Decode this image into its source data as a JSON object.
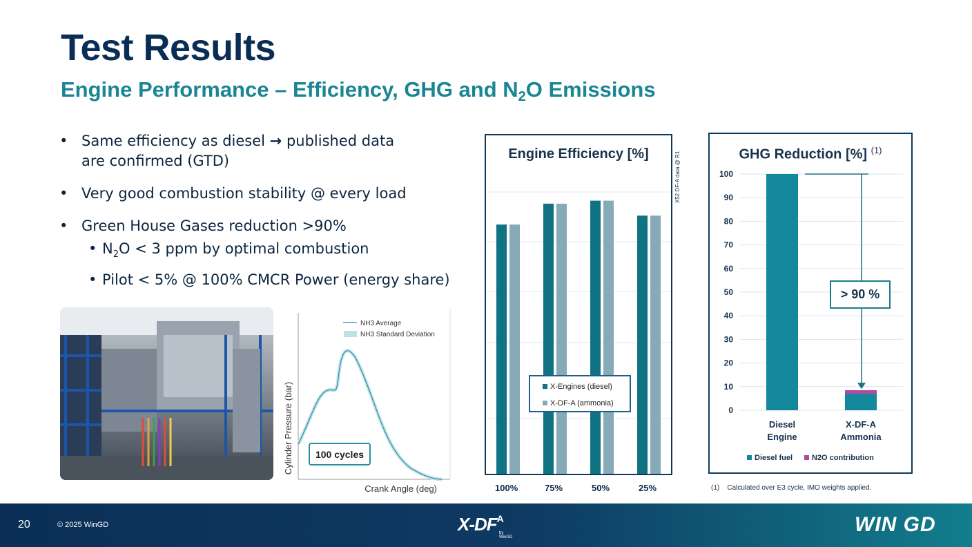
{
  "slide": {
    "title": "Test Results",
    "subtitle_pre": "Engine Performance – Efficiency, GHG and N",
    "subtitle_sub": "2",
    "subtitle_post": "O Emissions"
  },
  "bullets": {
    "b1_pre": "Same efficiency as diesel ",
    "b1_arrow": "→",
    "b1_line1_post": " published data",
    "b1_line2": "are confirmed (GTD)",
    "b2": "Very good combustion stability @ every load",
    "b3": "Green House Gases reduction >90%",
    "sub1_pre": "N",
    "sub1_sub": "2",
    "sub1_post": "O < 3 ppm by optimal combustion",
    "sub2": "Pilot < 5% @ 100% CMCR Power (energy share)"
  },
  "pressure_plot": {
    "legend_avg": "NH3 Average",
    "legend_std": "NH3 Standard Deviation",
    "ylabel": "Cylinder Pressure (bar)",
    "xlabel": "Crank Angle (deg)",
    "box_label": "100 cycles"
  },
  "chart_data": [
    {
      "type": "bar",
      "title": "Engine Efficiency [%]",
      "categories": [
        "100%",
        "75%",
        "50%",
        "25%"
      ],
      "series": [
        {
          "name": "X-Engines (diesel)",
          "values": [
            0.84,
            0.91,
            0.92,
            0.87
          ],
          "color": "#0f7384"
        },
        {
          "name": "X-DF-A (ammonia)",
          "values": [
            0.84,
            0.91,
            0.92,
            0.87
          ],
          "color": "#86aab8"
        }
      ],
      "ylim": [
        0,
        1
      ],
      "note": "X52 DF-A data @ R1"
    },
    {
      "type": "bar",
      "title": "GHG Reduction [%]",
      "title_sup": "(1)",
      "categories": [
        "Diesel Engine",
        "X-DF-A Ammonia"
      ],
      "category_lines": [
        [
          "Diesel",
          "Engine"
        ],
        [
          "X-DF-A",
          "Ammonia"
        ]
      ],
      "series": [
        {
          "name": "Diesel fuel",
          "values": [
            100,
            7
          ],
          "color": "#13889a"
        },
        {
          "name": "N2O contribution",
          "values": [
            0,
            1.5
          ],
          "color": "#b04aa6"
        }
      ],
      "stacked": true,
      "yticks": [
        0,
        10,
        20,
        30,
        40,
        50,
        60,
        70,
        80,
        90,
        100
      ],
      "ylim": [
        0,
        100
      ],
      "annotation": "> 90 %",
      "footnote": "(1)    Calculated over E3 cycle, IMO weights applied."
    }
  ],
  "footer": {
    "page_number": "20",
    "copyright": "© 2025 WinGD",
    "product_logo": "X-DF",
    "product_logo_sup": "A",
    "product_logo_by": "by WinGD",
    "company_logo": "WIN GD"
  }
}
